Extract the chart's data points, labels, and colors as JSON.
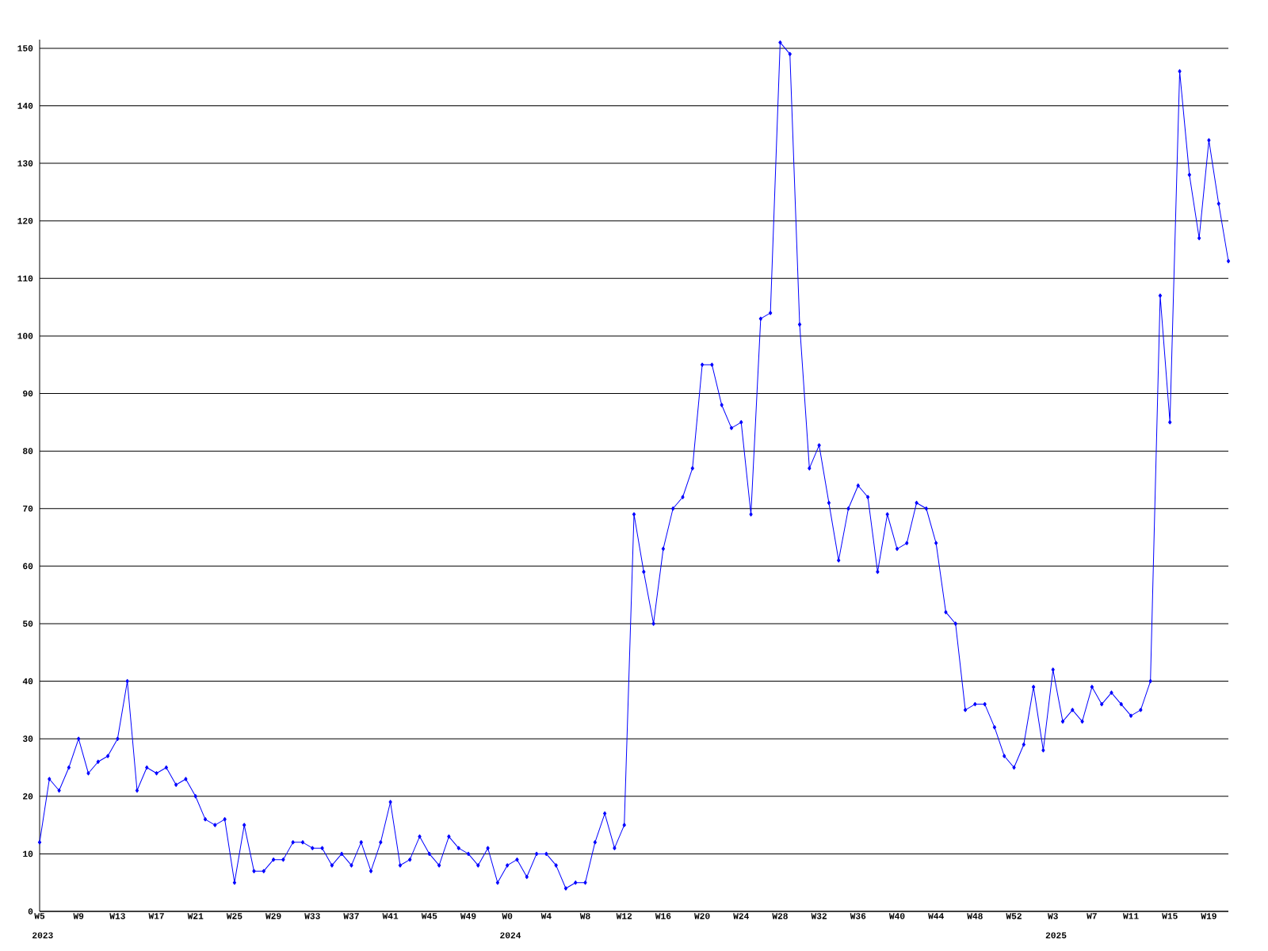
{
  "chart_data": {
    "type": "line",
    "categories": [
      "W5",
      null,
      null,
      null,
      "W9",
      null,
      null,
      null,
      "W13",
      null,
      null,
      null,
      "W17",
      null,
      null,
      null,
      "W21",
      null,
      null,
      null,
      "W25",
      null,
      null,
      null,
      "W29",
      null,
      null,
      null,
      "W33",
      null,
      null,
      null,
      "W37",
      null,
      null,
      null,
      "W41",
      null,
      null,
      null,
      "W45",
      null,
      null,
      null,
      "W49",
      null,
      null,
      null,
      "W0",
      null,
      null,
      null,
      "W4",
      null,
      null,
      null,
      "W8",
      null,
      null,
      null,
      "W12",
      null,
      null,
      null,
      "W16",
      null,
      null,
      null,
      "W20",
      null,
      null,
      null,
      "W24",
      null,
      null,
      null,
      "W28",
      null,
      null,
      null,
      "W32",
      null,
      null,
      null,
      "W36",
      null,
      null,
      null,
      "W40",
      null,
      null,
      null,
      "W44",
      null,
      null,
      null,
      "W48",
      null,
      null,
      null,
      "W52",
      null,
      null,
      null,
      "W3",
      null,
      null,
      null,
      "W7",
      null,
      null,
      null,
      "W11",
      null,
      null,
      null,
      "W15",
      null,
      null,
      null,
      "W19",
      null,
      null
    ],
    "values": [
      12,
      23,
      21,
      25,
      30,
      24,
      26,
      27,
      30,
      40,
      21,
      25,
      24,
      25,
      22,
      23,
      20,
      16,
      15,
      16,
      5,
      15,
      7,
      7,
      9,
      9,
      12,
      12,
      11,
      11,
      8,
      10,
      8,
      12,
      7,
      12,
      19,
      8,
      9,
      13,
      10,
      8,
      13,
      11,
      10,
      8,
      11,
      5,
      8,
      9,
      6,
      10,
      10,
      8,
      4,
      5,
      5,
      12,
      17,
      11,
      15,
      69,
      59,
      50,
      63,
      70,
      72,
      77,
      95,
      95,
      88,
      84,
      85,
      69,
      103,
      104,
      151,
      149,
      102,
      77,
      81,
      71,
      61,
      70,
      74,
      72,
      59,
      69,
      63,
      64,
      71,
      70,
      64,
      52,
      50,
      35,
      36,
      36,
      32,
      27,
      25,
      29,
      39,
      28,
      42,
      33,
      35,
      33,
      39,
      36,
      38,
      36,
      34,
      35,
      40,
      107,
      85,
      146,
      128,
      117,
      134,
      123,
      113
    ],
    "color": "#0000ff",
    "marker": "diamond",
    "ylim": [
      0,
      151.5
    ],
    "yticks": [
      0,
      10,
      20,
      30,
      40,
      50,
      60,
      70,
      80,
      90,
      100,
      110,
      120,
      130,
      140,
      150
    ],
    "grid": "y",
    "annotations": [
      "2023",
      "2024",
      "2025"
    ]
  }
}
